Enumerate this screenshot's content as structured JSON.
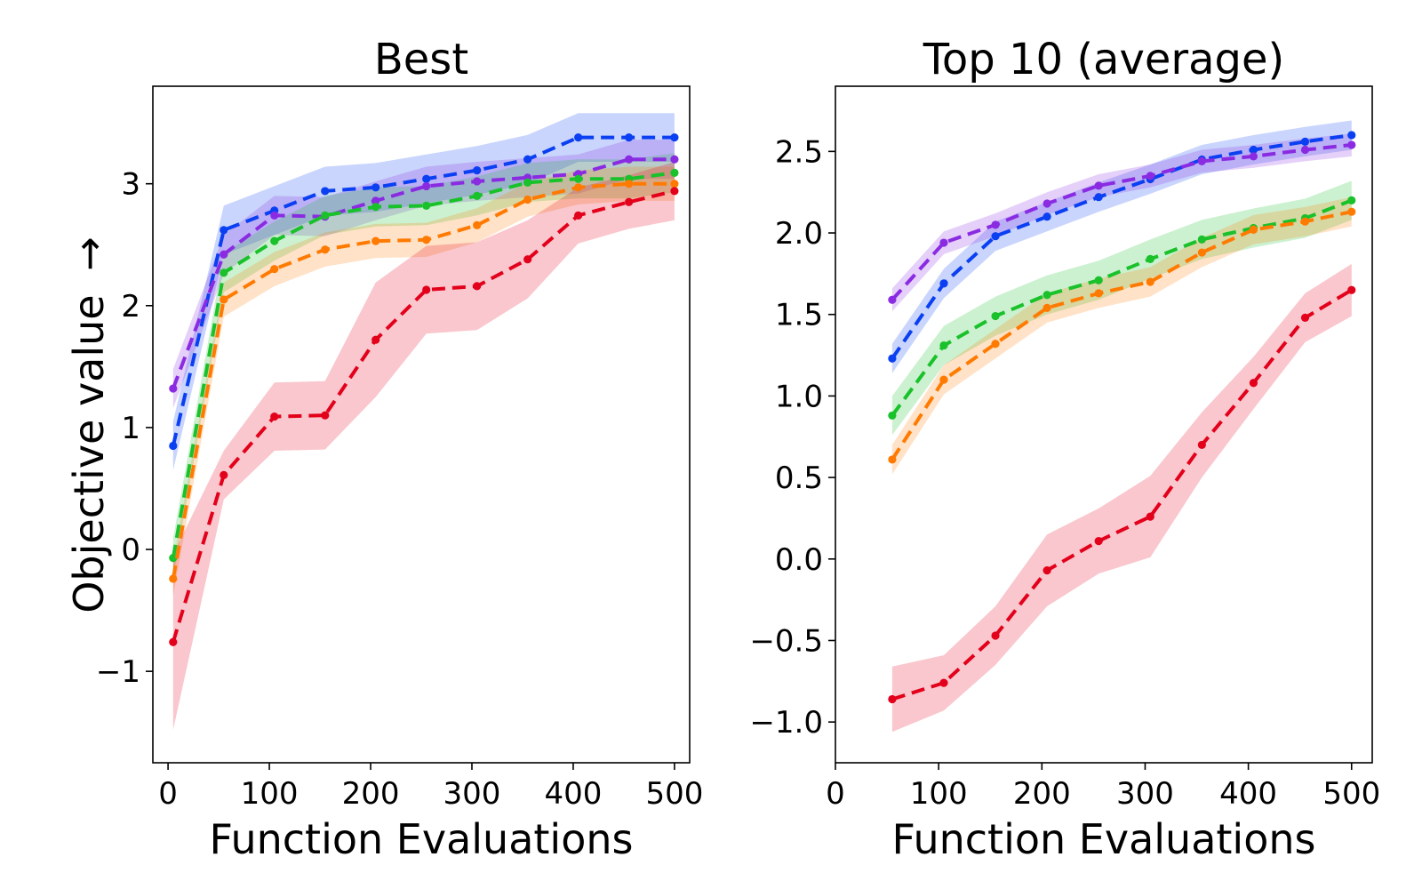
{
  "figure": {
    "ylabel": "Objective value",
    "ylabel_arrow": "→"
  },
  "colors": {
    "blue": "#0a3ff2",
    "purple": "#8a2be2",
    "green": "#19c12a",
    "orange": "#ff7a00",
    "red": "#e3001b"
  },
  "chart_data": [
    {
      "type": "line",
      "title": "Best",
      "xlabel": "Function Evaluations",
      "ylabel": "Objective value",
      "xlim": [
        -15,
        515
      ],
      "ylim": [
        -1.75,
        3.8
      ],
      "xticks": [
        0,
        100,
        200,
        300,
        400,
        500
      ],
      "xtick_labels": [
        "0",
        "100",
        "200",
        "300",
        "400",
        "500"
      ],
      "yticks": [
        -1,
        0,
        1,
        2,
        3
      ],
      "ytick_labels": [
        "−1",
        "0",
        "1",
        "2",
        "3"
      ],
      "x": [
        5,
        55,
        105,
        155,
        205,
        255,
        305,
        355,
        405,
        455,
        500
      ],
      "series": [
        {
          "color": "blue",
          "values": [
            0.85,
            2.62,
            2.78,
            2.94,
            2.97,
            3.04,
            3.11,
            3.2,
            3.38,
            3.38,
            3.38
          ],
          "band": 0.2
        },
        {
          "color": "purple",
          "values": [
            1.32,
            2.42,
            2.74,
            2.73,
            2.86,
            2.98,
            3.02,
            3.05,
            3.08,
            3.2,
            3.2
          ],
          "band": 0.16
        },
        {
          "color": "green",
          "values": [
            -0.07,
            2.27,
            2.53,
            2.74,
            2.81,
            2.82,
            2.9,
            3.01,
            3.04,
            3.04,
            3.09
          ],
          "band": 0.16
        },
        {
          "color": "orange",
          "values": [
            -0.24,
            2.05,
            2.3,
            2.46,
            2.53,
            2.54,
            2.66,
            2.87,
            2.97,
            3.0,
            3.0
          ],
          "band": 0.14
        },
        {
          "color": "red",
          "values": [
            -0.76,
            0.61,
            1.09,
            1.1,
            1.72,
            2.13,
            2.16,
            2.38,
            2.74,
            2.85,
            2.94
          ],
          "band": [
            0.72,
            0.2,
            0.28,
            0.28,
            0.47,
            0.36,
            0.36,
            0.32,
            0.23,
            0.22,
            0.24
          ]
        }
      ]
    },
    {
      "type": "line",
      "title": "Top 10 (average)",
      "xlabel": "Function Evaluations",
      "ylabel": "",
      "xlim": [
        0,
        520
      ],
      "ylim": [
        -1.25,
        2.9
      ],
      "xticks": [
        0,
        100,
        200,
        300,
        400,
        500
      ],
      "xtick_labels": [
        "0",
        "100",
        "200",
        "300",
        "400",
        "500"
      ],
      "yticks": [
        -1.0,
        -0.5,
        0.0,
        0.5,
        1.0,
        1.5,
        2.0,
        2.5
      ],
      "ytick_labels": [
        "−1.0",
        "−0.5",
        "0.0",
        "0.5",
        "1.0",
        "1.5",
        "2.0",
        "2.5"
      ],
      "x": [
        55,
        105,
        155,
        205,
        255,
        305,
        355,
        405,
        455,
        500
      ],
      "series": [
        {
          "color": "blue",
          "values": [
            1.23,
            1.69,
            1.98,
            2.1,
            2.22,
            2.33,
            2.45,
            2.51,
            2.56,
            2.6
          ],
          "band": 0.09
        },
        {
          "color": "purple",
          "values": [
            1.59,
            1.94,
            2.05,
            2.18,
            2.29,
            2.35,
            2.44,
            2.47,
            2.51,
            2.54
          ],
          "band": 0.07
        },
        {
          "color": "green",
          "values": [
            0.88,
            1.31,
            1.49,
            1.62,
            1.71,
            1.84,
            1.96,
            2.03,
            2.09,
            2.2
          ],
          "band": 0.12
        },
        {
          "color": "orange",
          "values": [
            0.61,
            1.1,
            1.32,
            1.54,
            1.63,
            1.7,
            1.88,
            2.02,
            2.07,
            2.13
          ],
          "band": 0.09
        },
        {
          "color": "red",
          "values": [
            -0.86,
            -0.76,
            -0.47,
            -0.07,
            0.11,
            0.26,
            0.7,
            1.08,
            1.48,
            1.65
          ],
          "band": [
            0.2,
            0.17,
            0.18,
            0.22,
            0.2,
            0.25,
            0.2,
            0.16,
            0.15,
            0.16
          ]
        }
      ]
    }
  ]
}
